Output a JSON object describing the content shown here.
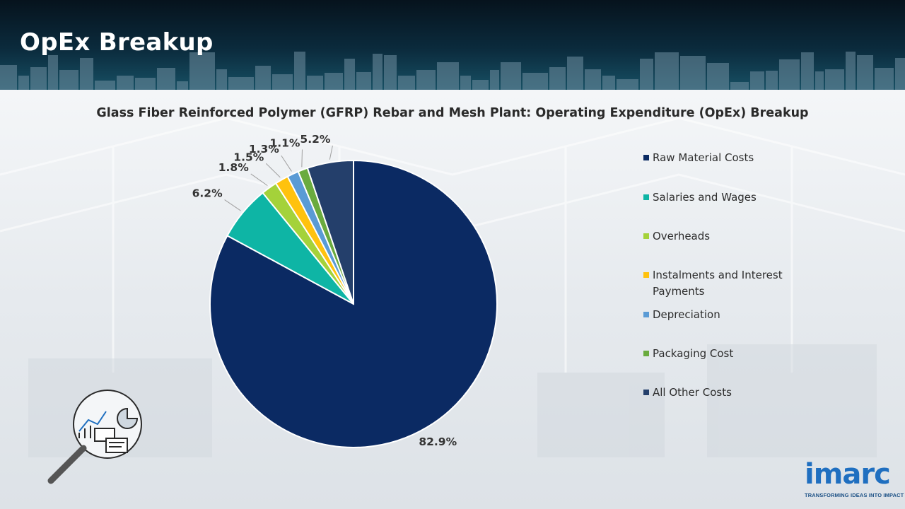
{
  "slide": {
    "title": "OpEx Breakup"
  },
  "colors": {
    "header_dark": "#06131d",
    "header_teal": "#175064",
    "title_text": "#ffffff",
    "label_text": "#333333"
  },
  "chart_data": {
    "type": "pie",
    "title": "Glass Fiber Reinforced Polymer (GFRP) Rebar and Mesh Plant: Operating Expenditure (OpEx) Breakup",
    "start_angle_deg": 0,
    "direction": "clockwise",
    "legend_position": "right",
    "slices": [
      {
        "label": "Raw Material Costs",
        "value": 82.9,
        "display": "82.9%",
        "color": "#0b2a63"
      },
      {
        "label": "Salaries and Wages",
        "value": 6.2,
        "display": "6.2%",
        "color": "#0eb5a5"
      },
      {
        "label": "Overheads",
        "value": 1.8,
        "display": "1.8%",
        "color": "#a4d23a"
      },
      {
        "label": "Instalments and Interest Payments",
        "value": 1.5,
        "display": "1.5%",
        "color": "#ffc20e"
      },
      {
        "label": "Depreciation",
        "value": 1.3,
        "display": "1.3%",
        "color": "#5a9bd5"
      },
      {
        "label": "Packaging Cost",
        "value": 1.1,
        "display": "1.1%",
        "color": "#6aab3e"
      },
      {
        "label": "All Other Costs",
        "value": 5.2,
        "display": "5.2%",
        "color": "#243f6b"
      }
    ]
  },
  "branding": {
    "logo_text": "imarc",
    "tagline": "TRANSFORMING IDEAS INTO IMPACT",
    "logo_color": "#1f6fc0"
  },
  "icons": [
    "magnifier-analytics-icon"
  ]
}
